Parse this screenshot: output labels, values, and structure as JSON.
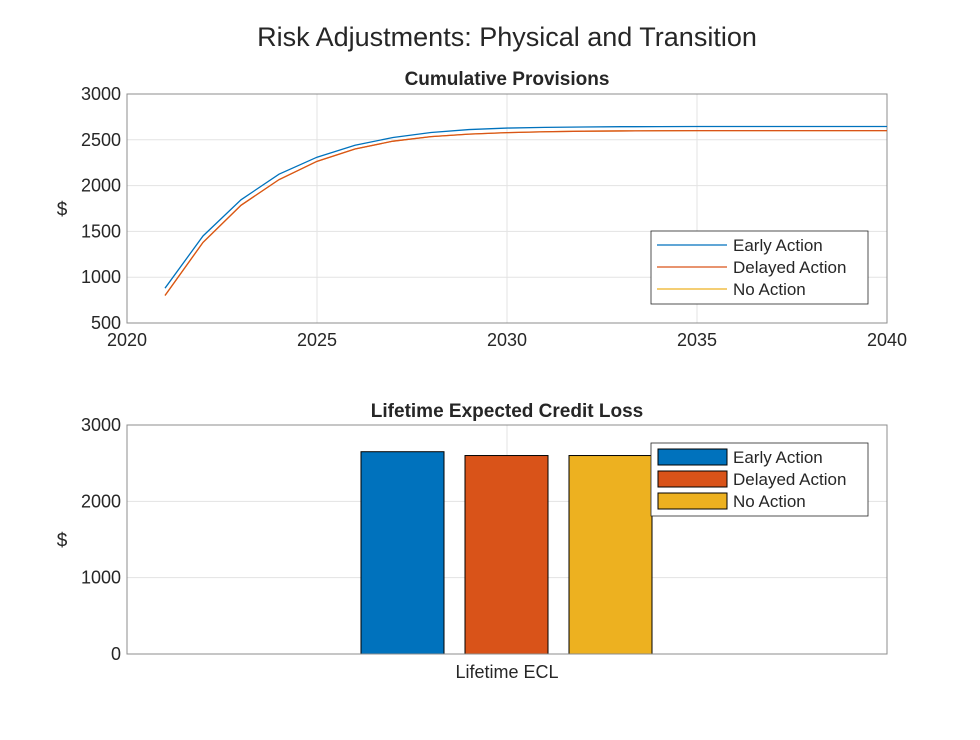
{
  "figure_title": "Risk Adjustments: Physical and Transition",
  "chart_data": [
    {
      "type": "line",
      "title": "Cumulative Provisions",
      "xlabel": "",
      "ylabel": "$",
      "xlim": [
        2020,
        2040
      ],
      "ylim": [
        500,
        3000
      ],
      "xticks": [
        "2020",
        "2025",
        "2030",
        "2035",
        "2040"
      ],
      "yticks": [
        "500",
        "1000",
        "1500",
        "2000",
        "2500",
        "3000"
      ],
      "grid": true,
      "legend_position": "bottom-right",
      "x": [
        2021,
        2022,
        2023,
        2024,
        2025,
        2026,
        2027,
        2028,
        2029,
        2030,
        2031,
        2032,
        2033,
        2034,
        2035,
        2036,
        2037,
        2038,
        2039,
        2040
      ],
      "series": [
        {
          "name": "Early Action",
          "color": "#0072BD",
          "values": [
            880,
            1450,
            1845,
            2125,
            2310,
            2440,
            2525,
            2580,
            2612,
            2628,
            2636,
            2640,
            2643,
            2644,
            2645,
            2645,
            2645,
            2645,
            2645,
            2645
          ]
        },
        {
          "name": "Delayed Action",
          "color": "#D95319",
          "values": [
            800,
            1380,
            1785,
            2065,
            2265,
            2400,
            2485,
            2535,
            2562,
            2578,
            2588,
            2594,
            2597,
            2599,
            2600,
            2600,
            2600,
            2600,
            2600,
            2600
          ]
        },
        {
          "name": "No Action",
          "color": "#EDB120",
          "values": [
            800,
            1380,
            1785,
            2065,
            2265,
            2400,
            2485,
            2535,
            2562,
            2578,
            2588,
            2594,
            2597,
            2599,
            2600,
            2600,
            2600,
            2600,
            2600,
            2600
          ]
        }
      ]
    },
    {
      "type": "bar",
      "title": "Lifetime Expected Credit Loss",
      "xlabel": "",
      "ylabel": "$",
      "ylim": [
        0,
        3000
      ],
      "yticks": [
        "0",
        "1000",
        "2000",
        "3000"
      ],
      "categories": [
        "Lifetime ECL"
      ],
      "grid": true,
      "legend_position": "top-right",
      "series": [
        {
          "name": "Early Action",
          "color": "#0072BD",
          "values": [
            2650
          ]
        },
        {
          "name": "Delayed Action",
          "color": "#D95319",
          "values": [
            2600
          ]
        },
        {
          "name": "No Action",
          "color": "#EDB120",
          "values": [
            2600
          ]
        }
      ]
    }
  ]
}
